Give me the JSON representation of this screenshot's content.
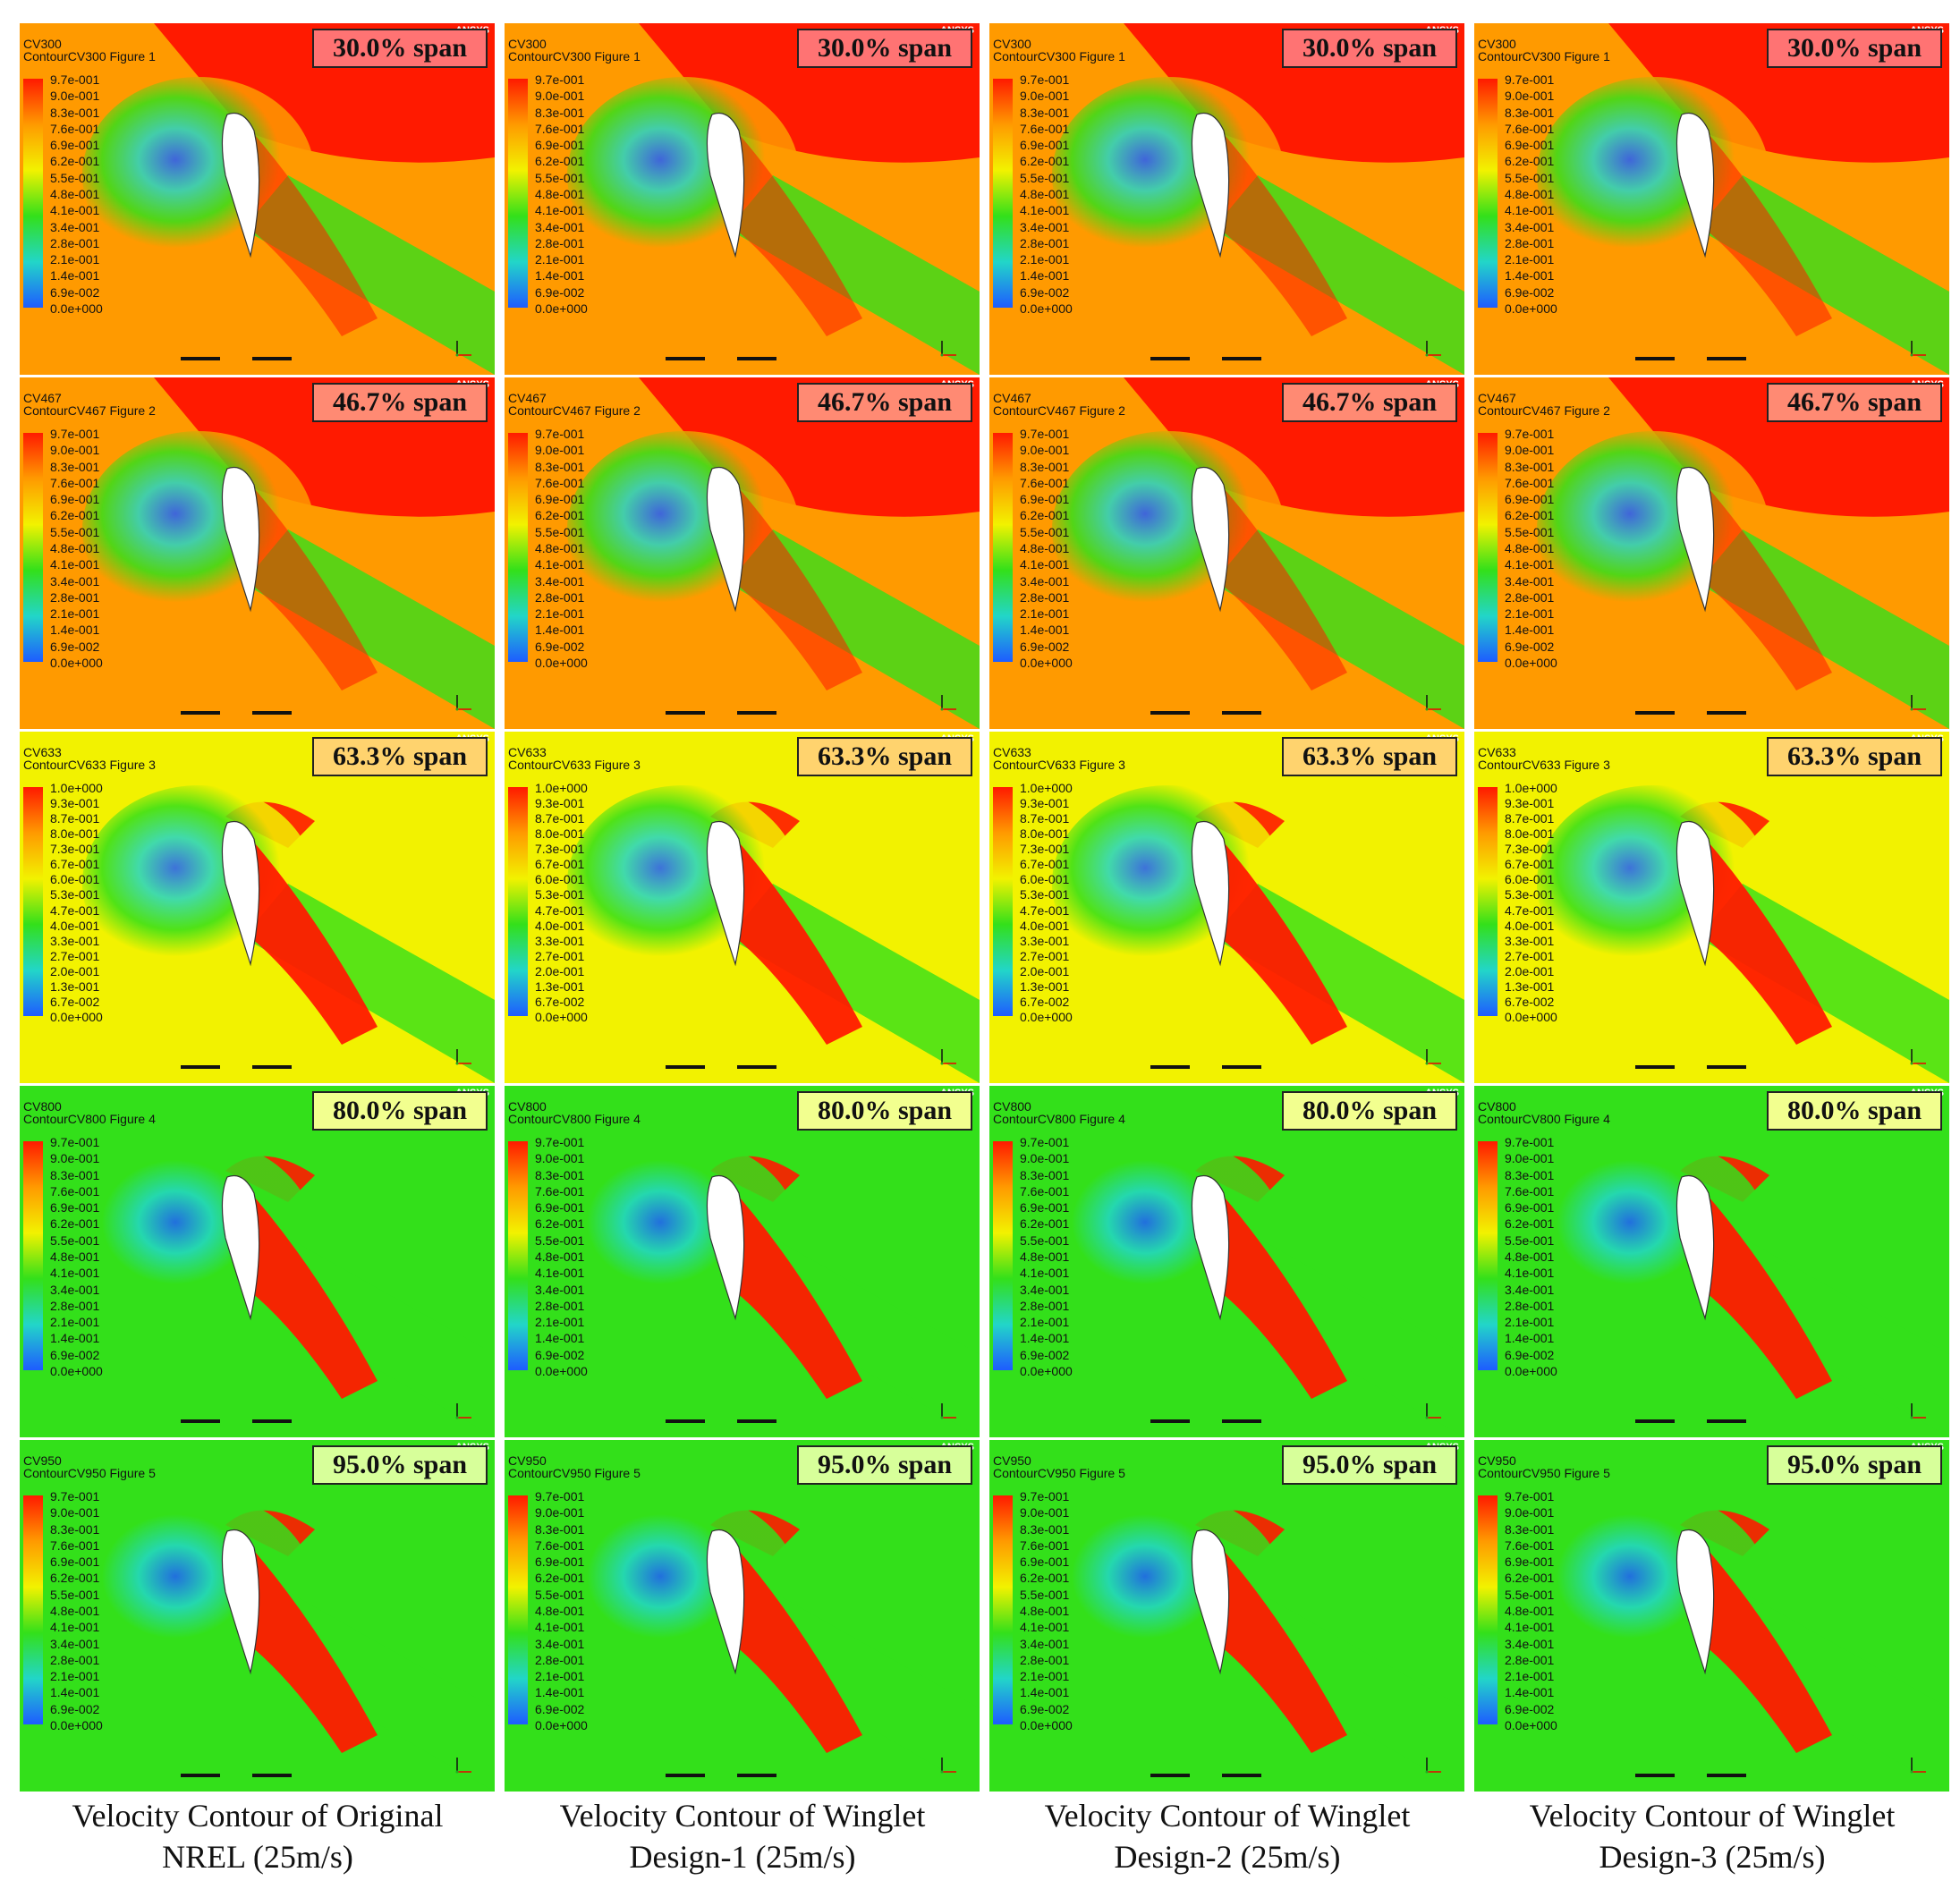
{
  "figure": {
    "rows": [
      {
        "row_id": "cv300",
        "cv_label": "CV300",
        "figure_label": "ContourCV300 Figure 1",
        "span_label": "30.0% span",
        "badge_color": "#ff7373",
        "legend_ticks": [
          "9.7e-001",
          "9.0e-001",
          "8.3e-001",
          "7.6e-001",
          "6.9e-001",
          "6.2e-001",
          "5.5e-001",
          "4.8e-001",
          "4.1e-001",
          "3.4e-001",
          "2.8e-001",
          "2.1e-001",
          "1.4e-001",
          "6.9e-002",
          "0.0e+000"
        ]
      },
      {
        "row_id": "cv467",
        "cv_label": "CV467",
        "figure_label": "ContourCV467 Figure 2",
        "span_label": "46.7% span",
        "badge_color": "#ff8a73",
        "legend_ticks": [
          "9.7e-001",
          "9.0e-001",
          "8.3e-001",
          "7.6e-001",
          "6.9e-001",
          "6.2e-001",
          "5.5e-001",
          "4.8e-001",
          "4.1e-001",
          "3.4e-001",
          "2.8e-001",
          "2.1e-001",
          "1.4e-001",
          "6.9e-002",
          "0.0e+000"
        ]
      },
      {
        "row_id": "cv633",
        "cv_label": "CV633",
        "figure_label": "ContourCV633 Figure 3",
        "span_label": "63.3% span",
        "badge_color": "#ffd36e",
        "legend_ticks": [
          "1.0e+000",
          "9.3e-001",
          "8.7e-001",
          "8.0e-001",
          "7.3e-001",
          "6.7e-001",
          "6.0e-001",
          "5.3e-001",
          "4.7e-001",
          "4.0e-001",
          "3.3e-001",
          "2.7e-001",
          "2.0e-001",
          "1.3e-001",
          "6.7e-002",
          "0.0e+000"
        ]
      },
      {
        "row_id": "cv800",
        "cv_label": "CV800",
        "figure_label": "ContourCV800 Figure 4",
        "span_label": "80.0% span",
        "badge_color": "#f2ff8f",
        "legend_ticks": [
          "9.7e-001",
          "9.0e-001",
          "8.3e-001",
          "7.6e-001",
          "6.9e-001",
          "6.2e-001",
          "5.5e-001",
          "4.8e-001",
          "4.1e-001",
          "3.4e-001",
          "2.8e-001",
          "2.1e-001",
          "1.4e-001",
          "6.9e-002",
          "0.0e+000"
        ]
      },
      {
        "row_id": "cv950",
        "cv_label": "CV950",
        "figure_label": "ContourCV950 Figure 5",
        "span_label": "95.0% span",
        "badge_color": "#d7ff9a",
        "legend_ticks": [
          "9.7e-001",
          "9.0e-001",
          "8.3e-001",
          "7.6e-001",
          "6.9e-001",
          "6.2e-001",
          "5.5e-001",
          "4.8e-001",
          "4.1e-001",
          "3.4e-001",
          "2.8e-001",
          "2.1e-001",
          "1.4e-001",
          "6.9e-002",
          "0.0e+000"
        ]
      }
    ],
    "columns": [
      {
        "caption_line1": "Velocity Contour of Original",
        "caption_line2": "NREL (25m/s)"
      },
      {
        "caption_line1": "Velocity Contour of Winglet",
        "caption_line2": "Design-1 (25m/s)"
      },
      {
        "caption_line1": "Velocity Contour of Winglet",
        "caption_line2": "Design-2 (25m/s)"
      },
      {
        "caption_line1": "Velocity Contour of Winglet",
        "caption_line2": "Design-3 (25m/s)"
      }
    ],
    "colors": {
      "contour_red": "#ff1a00",
      "contour_orange": "#ff9a00",
      "contour_yellow": "#f2f200",
      "contour_green": "#33e01a",
      "contour_cyan": "#22d6c8",
      "contour_blue": "#1e5cff"
    },
    "watermark": "ANSYS"
  }
}
